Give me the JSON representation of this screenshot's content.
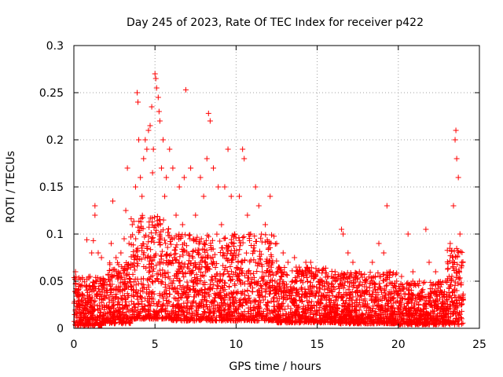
{
  "chart_data": {
    "type": "scatter",
    "title": "Day 245 of 2023, Rate Of TEC Index for receiver p422",
    "xlabel": "GPS time / hours",
    "ylabel": "ROTI / TECUs",
    "xlim": [
      0,
      25
    ],
    "ylim": [
      0,
      0.3
    ],
    "x_ticks": [
      "0",
      "5",
      "10",
      "15",
      "20",
      "25"
    ],
    "y_ticks": [
      "0",
      "0.05",
      "0.1",
      "0.15",
      "0.2",
      "0.25",
      "0.3"
    ],
    "grid": true,
    "marker": "plus",
    "color": "#ff0000",
    "series": [
      {
        "points": [
          [
            0.1,
            0.06
          ],
          [
            0.1,
            0.052
          ],
          [
            0.2,
            0.038
          ],
          [
            0.3,
            0.02
          ],
          [
            0.4,
            0.052
          ],
          [
            0.5,
            0.045
          ],
          [
            0.7,
            0.03
          ],
          [
            0.8,
            0.094
          ],
          [
            1.0,
            0.055
          ],
          [
            1.1,
            0.08
          ],
          [
            1.2,
            0.093
          ],
          [
            1.3,
            0.13
          ],
          [
            1.3,
            0.12
          ],
          [
            1.5,
            0.08
          ],
          [
            1.7,
            0.075
          ],
          [
            2.0,
            0.04
          ],
          [
            2.3,
            0.09
          ],
          [
            2.4,
            0.135
          ],
          [
            2.6,
            0.075
          ],
          [
            2.9,
            0.08
          ],
          [
            3.1,
            0.095
          ],
          [
            3.2,
            0.125
          ],
          [
            3.3,
            0.17
          ],
          [
            3.4,
            0.09
          ],
          [
            3.6,
            0.11
          ],
          [
            3.8,
            0.15
          ],
          [
            3.9,
            0.25
          ],
          [
            3.95,
            0.24
          ],
          [
            4.0,
            0.2
          ],
          [
            4.1,
            0.16
          ],
          [
            4.2,
            0.14
          ],
          [
            4.3,
            0.18
          ],
          [
            4.4,
            0.2
          ],
          [
            4.5,
            0.19
          ],
          [
            4.6,
            0.21
          ],
          [
            4.7,
            0.215
          ],
          [
            4.8,
            0.235
          ],
          [
            4.85,
            0.165
          ],
          [
            4.9,
            0.19
          ],
          [
            5.0,
            0.27
          ],
          [
            5.05,
            0.265
          ],
          [
            5.1,
            0.255
          ],
          [
            5.2,
            0.245
          ],
          [
            5.25,
            0.23
          ],
          [
            5.3,
            0.22
          ],
          [
            5.4,
            0.17
          ],
          [
            5.5,
            0.2
          ],
          [
            5.6,
            0.14
          ],
          [
            5.7,
            0.16
          ],
          [
            5.9,
            0.19
          ],
          [
            6.1,
            0.17
          ],
          [
            6.3,
            0.12
          ],
          [
            6.5,
            0.15
          ],
          [
            6.7,
            0.11
          ],
          [
            6.8,
            0.16
          ],
          [
            6.9,
            0.253
          ],
          [
            7.2,
            0.17
          ],
          [
            7.5,
            0.12
          ],
          [
            7.8,
            0.16
          ],
          [
            8.0,
            0.14
          ],
          [
            8.2,
            0.18
          ],
          [
            8.3,
            0.228
          ],
          [
            8.4,
            0.22
          ],
          [
            8.6,
            0.17
          ],
          [
            8.9,
            0.15
          ],
          [
            9.1,
            0.11
          ],
          [
            9.3,
            0.15
          ],
          [
            9.5,
            0.19
          ],
          [
            9.7,
            0.14
          ],
          [
            9.9,
            0.1
          ],
          [
            10.2,
            0.14
          ],
          [
            10.4,
            0.19
          ],
          [
            10.5,
            0.18
          ],
          [
            10.7,
            0.12
          ],
          [
            10.9,
            0.1
          ],
          [
            11.2,
            0.15
          ],
          [
            11.4,
            0.13
          ],
          [
            11.8,
            0.11
          ],
          [
            12.1,
            0.14
          ],
          [
            12.5,
            0.09
          ],
          [
            12.9,
            0.08
          ],
          [
            13.2,
            0.07
          ],
          [
            13.6,
            0.075
          ],
          [
            13.9,
            0.06
          ],
          [
            14.3,
            0.07
          ],
          [
            14.6,
            0.07
          ],
          [
            15.0,
            0.06
          ],
          [
            15.3,
            0.05
          ],
          [
            15.7,
            0.055
          ],
          [
            16.1,
            0.06
          ],
          [
            16.5,
            0.105
          ],
          [
            16.6,
            0.1
          ],
          [
            16.9,
            0.08
          ],
          [
            17.2,
            0.07
          ],
          [
            17.6,
            0.06
          ],
          [
            18.0,
            0.05
          ],
          [
            18.4,
            0.07
          ],
          [
            18.8,
            0.09
          ],
          [
            19.1,
            0.08
          ],
          [
            19.3,
            0.13
          ],
          [
            19.5,
            0.06
          ],
          [
            19.9,
            0.05
          ],
          [
            20.2,
            0.055
          ],
          [
            20.6,
            0.1
          ],
          [
            20.9,
            0.06
          ],
          [
            21.3,
            0.05
          ],
          [
            21.7,
            0.105
          ],
          [
            21.9,
            0.07
          ],
          [
            22.3,
            0.06
          ],
          [
            22.6,
            0.04
          ],
          [
            22.9,
            0.05
          ],
          [
            23.2,
            0.09
          ],
          [
            23.4,
            0.13
          ],
          [
            23.5,
            0.2
          ],
          [
            23.55,
            0.21
          ],
          [
            23.6,
            0.18
          ],
          [
            23.7,
            0.16
          ],
          [
            23.8,
            0.1
          ],
          [
            23.9,
            0.07
          ],
          [
            24.0,
            0.03
          ]
        ]
      }
    ],
    "noise_band": [
      {
        "x0": 0,
        "x1": 2,
        "y0": 0.003,
        "y1": 0.055
      },
      {
        "x0": 2,
        "x1": 3.5,
        "y0": 0.005,
        "y1": 0.07
      },
      {
        "x0": 3.5,
        "x1": 6,
        "y0": 0.01,
        "y1": 0.12
      },
      {
        "x0": 6,
        "x1": 9,
        "y0": 0.008,
        "y1": 0.1
      },
      {
        "x0": 9,
        "x1": 12.5,
        "y0": 0.008,
        "y1": 0.1
      },
      {
        "x0": 12.5,
        "x1": 16,
        "y0": 0.006,
        "y1": 0.065
      },
      {
        "x0": 16,
        "x1": 20,
        "y0": 0.005,
        "y1": 0.06
      },
      {
        "x0": 20,
        "x1": 23,
        "y0": 0.004,
        "y1": 0.05
      },
      {
        "x0": 23,
        "x1": 24,
        "y0": 0.004,
        "y1": 0.085
      }
    ]
  }
}
